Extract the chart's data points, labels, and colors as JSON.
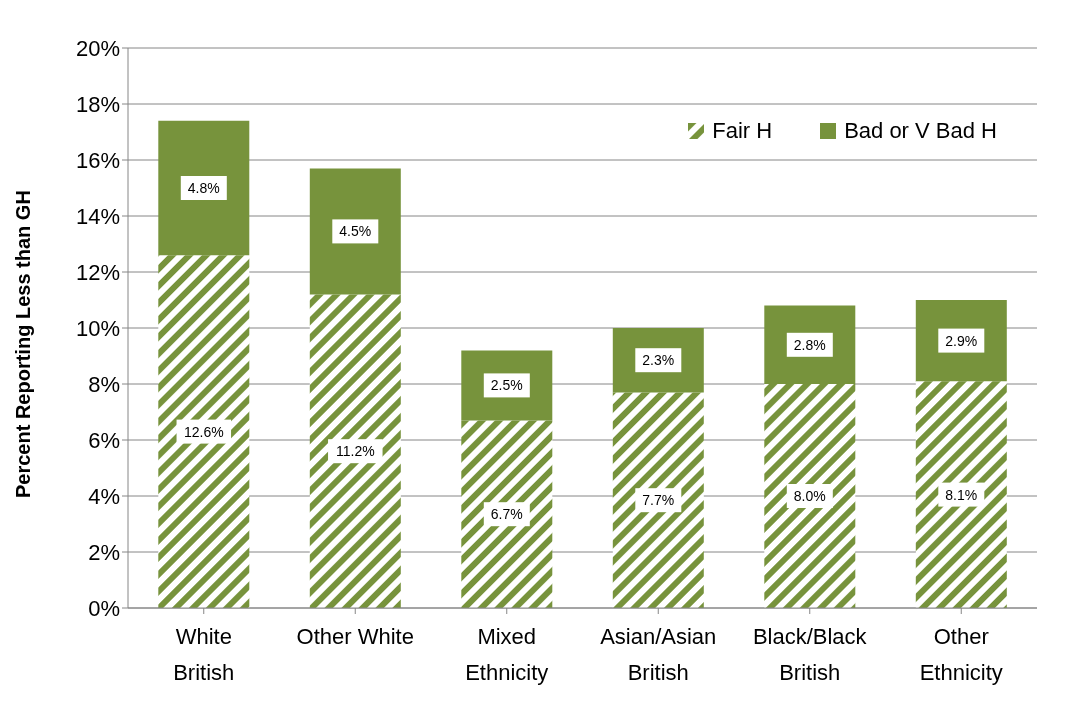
{
  "chart_data": {
    "type": "bar",
    "stacked": true,
    "categories": [
      "White British",
      "Other White",
      "Mixed Ethnicity",
      "Asian/Asian British",
      "Black/Black British",
      "Other Ethnicity"
    ],
    "series": [
      {
        "name": "Fair H",
        "color": "#77933c",
        "values": [
          12.6,
          11.2,
          6.7,
          7.7,
          8.0,
          8.1
        ],
        "value_labels": [
          "12.6%",
          "11.2%",
          "6.7%",
          "7.7%",
          "8.0%",
          "8.1%"
        ]
      },
      {
        "name": "Bad or V Bad H",
        "color": "#77933c",
        "values": [
          4.8,
          4.5,
          2.5,
          2.3,
          2.8,
          2.9
        ],
        "value_labels": [
          "4.8%",
          "4.5%",
          "2.5%",
          "2.3%",
          "2.8%",
          "2.9%"
        ]
      }
    ],
    "ylabel": "Percent Reporting Less than GH",
    "ylim": [
      0,
      20
    ],
    "yticks": [
      {
        "value": 0,
        "label": "0%"
      },
      {
        "value": 2,
        "label": "2%"
      },
      {
        "value": 4,
        "label": "4%"
      },
      {
        "value": 6,
        "label": "6%"
      },
      {
        "value": 8,
        "label": "8%"
      },
      {
        "value": 10,
        "label": "10%"
      },
      {
        "value": 12,
        "label": "12%"
      },
      {
        "value": 14,
        "label": "14%"
      },
      {
        "value": 16,
        "label": "16%"
      },
      {
        "value": 18,
        "label": "18%"
      },
      {
        "value": 20,
        "label": "20%"
      }
    ],
    "grid": "y",
    "legend": "top right"
  }
}
